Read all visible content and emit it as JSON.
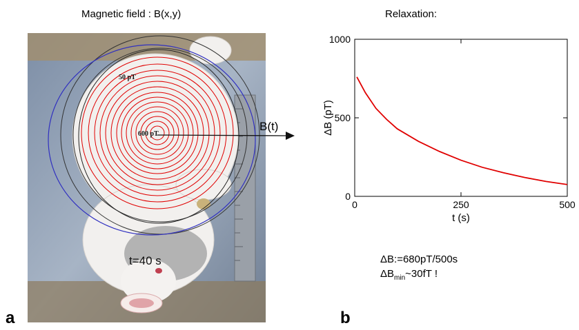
{
  "figure": {
    "panel_a_title": "Magnetic field : B(x,y)",
    "panel_b_title": "Relaxation:",
    "panel_a_letter": "a",
    "panel_b_letter": "b",
    "contour_label_outer": "50 pT",
    "contour_label_center": "600 pT",
    "arrow_label": "B(t)",
    "time_label": "t=40 s",
    "note_line1": "ΔB:=680pT/500s",
    "note_line2_prefix": "ΔB",
    "note_line2_sub": "min",
    "note_line2_suffix": "~30fT !"
  },
  "colors": {
    "curve": "#e00000",
    "contour": "#e00000",
    "contour_outer": "#222222",
    "contour_blue": "#3030c0"
  },
  "chart_data": {
    "type": "line",
    "title": "Relaxation:",
    "xlabel": "t (s)",
    "ylabel": "ΔB (pT)",
    "xlim": [
      0,
      500
    ],
    "ylim": [
      0,
      1000
    ],
    "xticks": [
      0,
      250,
      500
    ],
    "yticks": [
      0,
      500,
      1000
    ],
    "grid": false,
    "series": [
      {
        "x": [
          5,
          25,
          50,
          75,
          100,
          150,
          200,
          250,
          300,
          350,
          400,
          450,
          500
        ],
        "y": [
          760,
          660,
          560,
          490,
          430,
          350,
          285,
          230,
          185,
          150,
          120,
          95,
          75
        ]
      }
    ]
  }
}
